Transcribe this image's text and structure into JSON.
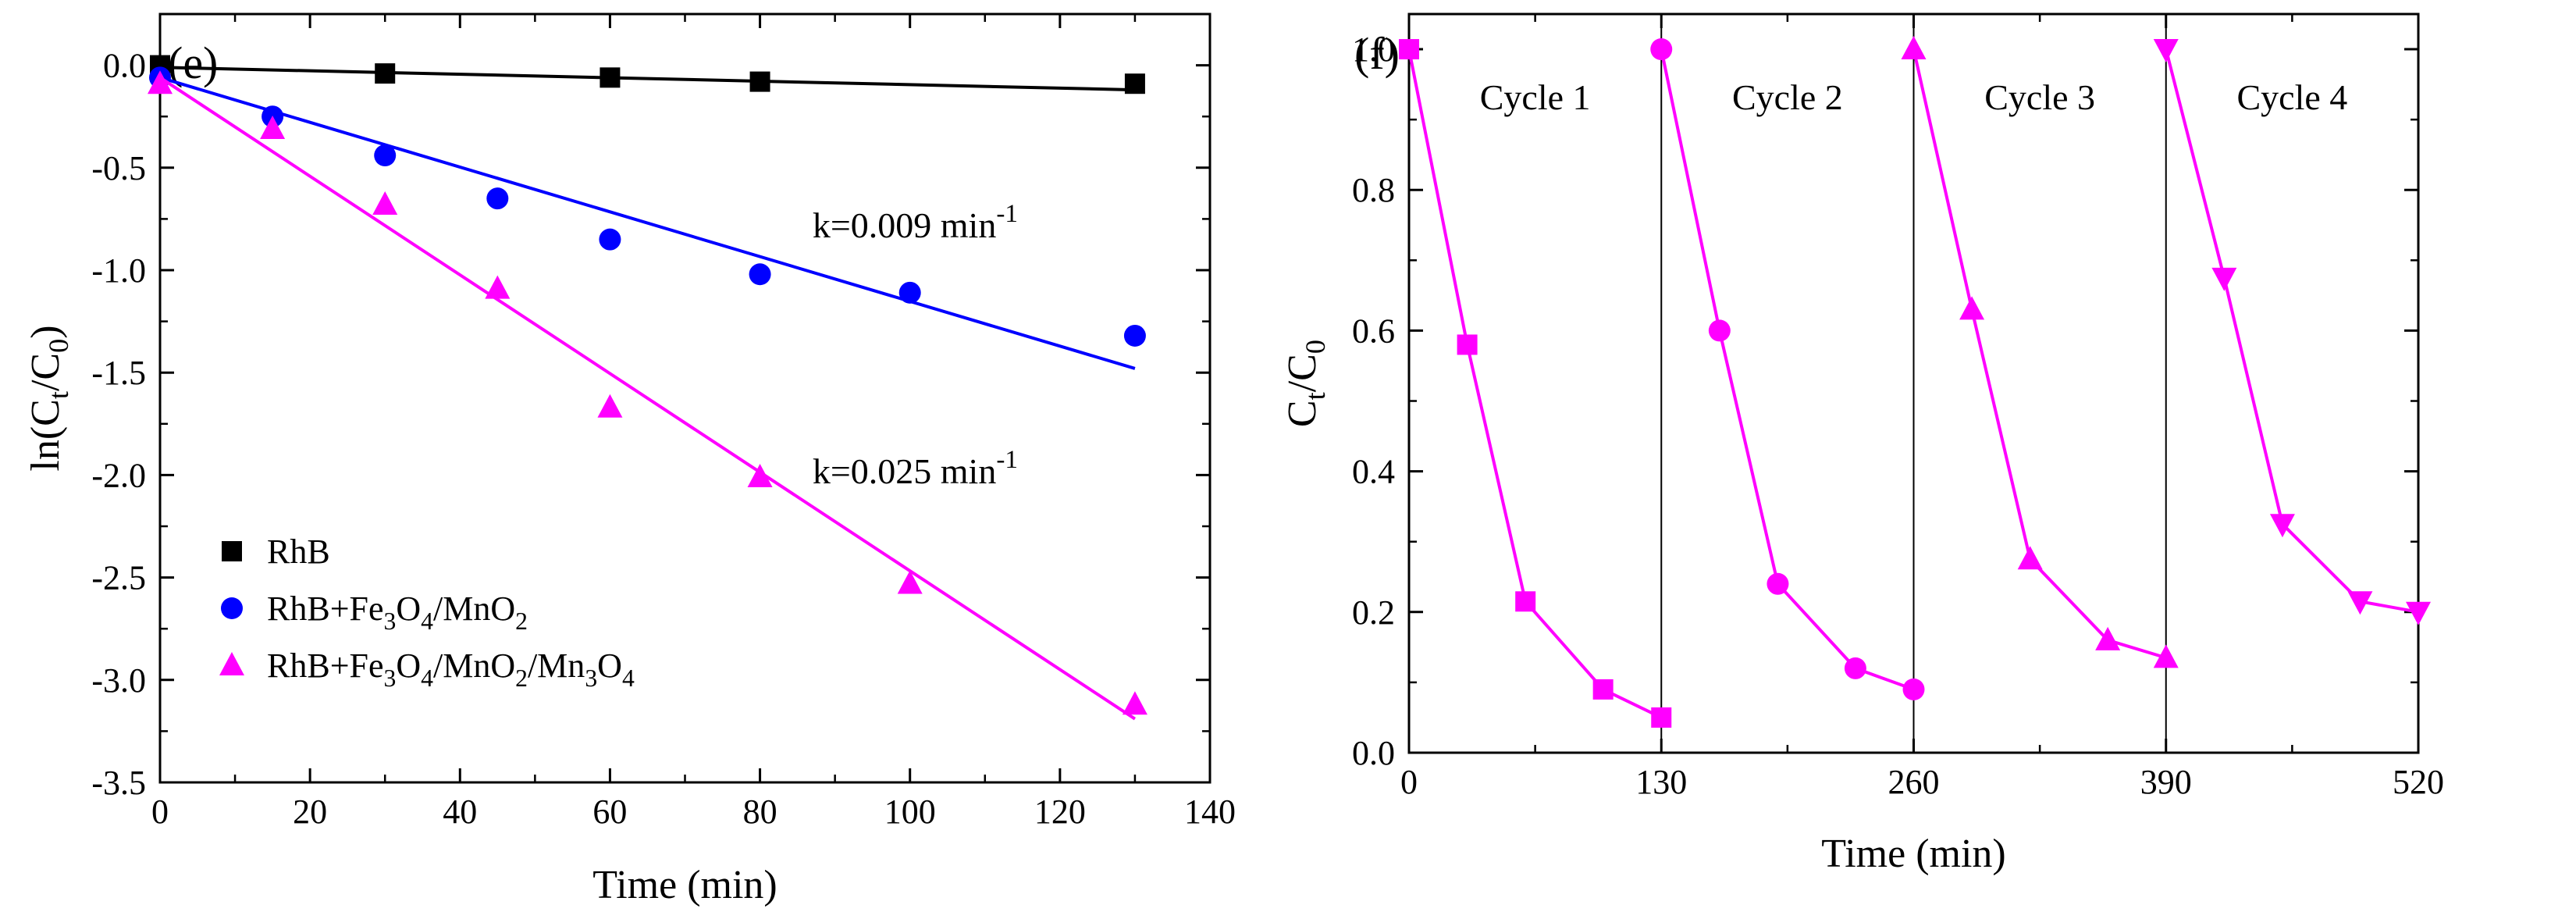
{
  "chart_data": [
    {
      "panel": "(e)",
      "type": "scatter",
      "title": "",
      "xlabel": "Time (min)",
      "ylabel": {
        "main": "ln(C",
        "sub1": "t",
        "mid": "/C",
        "sub2": "0",
        "end": ")"
      },
      "xlim": [
        0,
        140
      ],
      "ylim": [
        -3.5,
        0.25
      ],
      "xticks": [
        0,
        20,
        40,
        60,
        80,
        100,
        120,
        140
      ],
      "yticks": [
        0.0,
        -0.5,
        -1.0,
        -1.5,
        -2.0,
        -2.5,
        -3.0,
        -3.5
      ],
      "xtick_labels": [
        "0",
        "20",
        "40",
        "60",
        "80",
        "100",
        "120",
        "140"
      ],
      "ytick_labels": [
        "0.0",
        "-0.5",
        "-1.0",
        "-1.5",
        "-2.0",
        "-2.5",
        "-3.0",
        "-3.5"
      ],
      "legend_position": "lower-left",
      "series": [
        {
          "name": "RhB",
          "legend": [
            {
              "t": "RhB"
            }
          ],
          "color": "#000000",
          "marker": "square",
          "x": [
            0,
            30,
            60,
            80,
            130
          ],
          "y": [
            0.0,
            -0.04,
            -0.06,
            -0.08,
            -0.09
          ],
          "fit": {
            "x": [
              0,
              130
            ],
            "y": [
              -0.01,
              -0.12
            ]
          }
        },
        {
          "name": "RhB+Fe3O4/MnO2",
          "legend": [
            {
              "t": "RhB+Fe"
            },
            {
              "t": "3",
              "sub": true
            },
            {
              "t": "O"
            },
            {
              "t": "4",
              "sub": true
            },
            {
              "t": "/MnO"
            },
            {
              "t": "2",
              "sub": true
            }
          ],
          "color": "#0000ff",
          "marker": "circle",
          "x": [
            0,
            15,
            30,
            45,
            60,
            80,
            100,
            130
          ],
          "y": [
            -0.06,
            -0.25,
            -0.44,
            -0.65,
            -0.85,
            -1.02,
            -1.11,
            -1.32
          ],
          "fit": {
            "x": [
              0,
              130
            ],
            "y": [
              -0.06,
              -1.48
            ]
          },
          "annotation": {
            "pre": "k=0.009 min",
            "sup": "-1",
            "x": 87,
            "y": -0.84
          }
        },
        {
          "name": "RhB+Fe3O4/MnO2/Mn3O4",
          "legend": [
            {
              "t": "RhB+Fe"
            },
            {
              "t": "3",
              "sub": true
            },
            {
              "t": "O"
            },
            {
              "t": "4",
              "sub": true
            },
            {
              "t": "/MnO"
            },
            {
              "t": "2",
              "sub": true
            },
            {
              "t": "/Mn"
            },
            {
              "t": "3",
              "sub": true
            },
            {
              "t": "O"
            },
            {
              "t": "4",
              "sub": true
            }
          ],
          "color": "#ff00ff",
          "marker": "triangle",
          "x": [
            0,
            15,
            30,
            45,
            60,
            80,
            100,
            130
          ],
          "y": [
            -0.09,
            -0.31,
            -0.68,
            -1.09,
            -1.67,
            -2.01,
            -2.53,
            -3.12
          ],
          "fit": {
            "x": [
              0,
              130
            ],
            "y": [
              -0.06,
              -3.19
            ]
          },
          "annotation": {
            "pre": "k=0.025 min",
            "sup": "-1",
            "x": 87,
            "y": -2.04
          }
        }
      ]
    },
    {
      "panel": "(f)",
      "type": "line",
      "title": "",
      "xlabel": "Time (min)",
      "ylabel": {
        "main": "C",
        "sub1": "t",
        "mid": "/C",
        "sub2": "0"
      },
      "xlim": [
        0,
        520
      ],
      "ylim": [
        0,
        1.05
      ],
      "xticks": [
        0,
        130,
        260,
        390,
        520
      ],
      "yticks": [
        0.0,
        0.2,
        0.4,
        0.6,
        0.8,
        1.0
      ],
      "xtick_labels": [
        "0",
        "130",
        "260",
        "390",
        "520"
      ],
      "ytick_labels": [
        "0.0",
        "0.2",
        "0.4",
        "0.6",
        "0.8",
        "1.0"
      ],
      "color": "#ff00ff",
      "dividers": [
        130,
        260,
        390
      ],
      "cycles": [
        {
          "label": "Cycle 1",
          "marker": "square",
          "label_x": 65,
          "x": [
            0,
            30,
            60,
            100,
            130
          ],
          "y": [
            1.0,
            0.58,
            0.215,
            0.09,
            0.05
          ]
        },
        {
          "label": "Cycle 2",
          "marker": "circle",
          "label_x": 195,
          "x": [
            130,
            160,
            190,
            230,
            260
          ],
          "y": [
            1.0,
            0.6,
            0.24,
            0.12,
            0.09
          ]
        },
        {
          "label": "Cycle 3",
          "marker": "triangle",
          "label_x": 325,
          "x": [
            260,
            290,
            320,
            360,
            390
          ],
          "y": [
            1.0,
            0.63,
            0.275,
            0.16,
            0.135
          ]
        },
        {
          "label": "Cycle 4",
          "marker": "triangle-down",
          "label_x": 455,
          "x": [
            390,
            420,
            450,
            490,
            520
          ],
          "y": [
            1.0,
            0.675,
            0.325,
            0.215,
            0.2
          ]
        }
      ]
    }
  ]
}
